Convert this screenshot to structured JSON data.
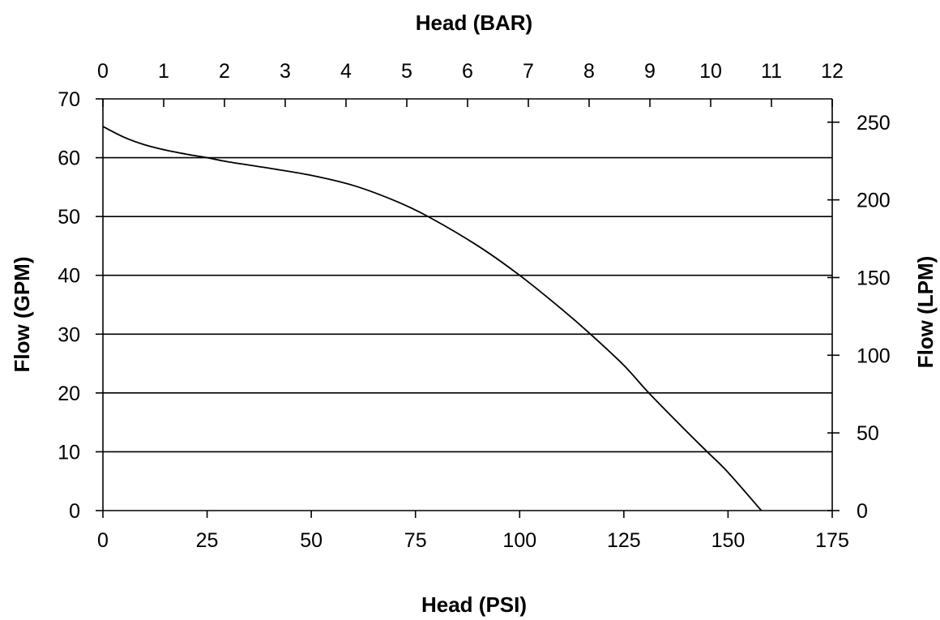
{
  "chart_data": {
    "type": "line",
    "title": "",
    "xlabel_bottom": "Head (PSI)",
    "xlabel_top": "Head (BAR)",
    "ylabel_left": "Flow (GPM)",
    "ylabel_right": "Flow (LPM)",
    "xlim": [
      0,
      175
    ],
    "ylim": [
      0,
      70
    ],
    "x_top_lim": [
      0,
      12
    ],
    "y_right_lim": [
      0,
      265
    ],
    "x_ticks_bottom": [
      "0",
      "25",
      "50",
      "75",
      "100",
      "125",
      "150",
      "175"
    ],
    "x_ticks_top": [
      "0",
      "1",
      "2",
      "3",
      "4",
      "5",
      "6",
      "7",
      "8",
      "9",
      "10",
      "11",
      "12"
    ],
    "y_ticks_left": [
      "0",
      "10",
      "20",
      "30",
      "40",
      "50",
      "60",
      "70"
    ],
    "y_ticks_right": [
      "0",
      "50",
      "100",
      "150",
      "200",
      "250"
    ],
    "grid": "horizontal",
    "line_color": "#000000",
    "series": [
      {
        "x": [
          0,
          5,
          10,
          15,
          20,
          25,
          30,
          40,
          50,
          60,
          70,
          78,
          90,
          100,
          110,
          117,
          125,
          131,
          140,
          145,
          150,
          158
        ],
        "y": [
          65.3,
          63.5,
          62.2,
          61.3,
          60.6,
          60.0,
          59.3,
          58.2,
          57.0,
          55.3,
          52.7,
          50.0,
          45.0,
          40.0,
          34.3,
          30.0,
          24.7,
          20.0,
          13.5,
          10.0,
          6.5,
          0.0
        ]
      }
    ]
  }
}
